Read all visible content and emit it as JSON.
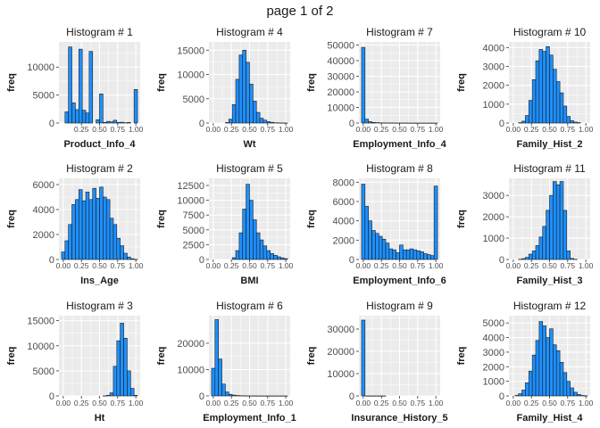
{
  "page_title": "page 1 of 2",
  "colors": {
    "bar_fill": "#1E90FF",
    "bar_stroke": "#1a1a1a",
    "panel_bg": "#EBEBEB",
    "grid": "#FFFFFF"
  },
  "chart_data": [
    {
      "type": "bar",
      "title": "Histogram # 1",
      "xlabel": "Product_Info_4",
      "ylabel": "freq",
      "xlim": [
        -0.06,
        1.06
      ],
      "ylim": [
        0,
        14500
      ],
      "xticks": [
        "0.25",
        "0.50",
        "0.75",
        "1.00"
      ],
      "xtick_values": [
        0.25,
        0.5,
        0.75,
        1.0
      ],
      "yticks": [
        0,
        5000,
        10000
      ],
      "ytick_labels": [
        "0",
        "5000",
        "10000"
      ],
      "bin_width": 0.0476,
      "bin_centers_start": 0.0,
      "values": [
        0,
        2000,
        13600,
        3600,
        2400,
        13200,
        2300,
        1800,
        12800,
        0,
        600,
        5200,
        100,
        300,
        200,
        500,
        100,
        150,
        50,
        100,
        0,
        6000
      ]
    },
    {
      "type": "bar",
      "title": "Histogram # 4",
      "xlabel": "Wt",
      "ylabel": "freq",
      "xlim": [
        -0.06,
        1.06
      ],
      "ylim": [
        0,
        16700
      ],
      "xticks": [
        "0.00",
        "0.25",
        "0.50",
        "0.75",
        "1.00"
      ],
      "xtick_values": [
        0,
        0.25,
        0.5,
        0.75,
        1.0
      ],
      "yticks": [
        0,
        5000,
        10000,
        15000
      ],
      "ytick_labels": [
        "0",
        "5000",
        "10000",
        "15000"
      ],
      "bin_width": 0.0476,
      "bin_centers_start": 0.0,
      "values": [
        0,
        0,
        0,
        0,
        100,
        800,
        3800,
        9000,
        14000,
        15000,
        12500,
        8000,
        4500,
        2200,
        1000,
        600,
        300,
        150,
        60,
        40,
        20,
        10
      ]
    },
    {
      "type": "bar",
      "title": "Histogram # 7",
      "xlabel": "Employment_Info_4",
      "ylabel": "freq",
      "xlim": [
        -0.06,
        1.06
      ],
      "ylim": [
        0,
        52000
      ],
      "xticks": [
        "0.00",
        "0.25",
        "0.50",
        "0.75",
        "1.00"
      ],
      "xtick_values": [
        0,
        0.25,
        0.5,
        0.75,
        1.0
      ],
      "yticks": [
        0,
        10000,
        20000,
        30000,
        40000,
        50000
      ],
      "ytick_labels": [
        "0",
        "10000",
        "20000",
        "30000",
        "40000",
        "50000"
      ],
      "bin_width": 0.0476,
      "bin_centers_start": 0.0,
      "values": [
        48500,
        2500,
        900,
        400,
        250,
        150,
        100,
        80,
        60,
        50,
        40,
        30,
        25,
        20,
        15,
        12,
        10,
        8,
        6,
        5,
        4,
        3
      ]
    },
    {
      "type": "bar",
      "title": "Histogram # 10",
      "xlabel": "Family_Hist_2",
      "ylabel": "freq",
      "xlim": [
        -0.06,
        1.06
      ],
      "ylim": [
        0,
        4300
      ],
      "xticks": [
        "0.00",
        "0.25",
        "0.50",
        "0.75",
        "1.00"
      ],
      "xtick_values": [
        0,
        0.25,
        0.5,
        0.75,
        1.0
      ],
      "yticks": [
        0,
        1000,
        2000,
        3000,
        4000
      ],
      "ytick_labels": [
        "0",
        "1000",
        "2000",
        "3000",
        "4000"
      ],
      "bin_width": 0.0476,
      "bin_centers_start": 0.0,
      "values": [
        0,
        0,
        20,
        100,
        400,
        1200,
        2300,
        3300,
        3900,
        3800,
        4050,
        3600,
        2850,
        2200,
        1600,
        900,
        350,
        130,
        50,
        20,
        0,
        0
      ]
    },
    {
      "type": "bar",
      "title": "Histogram # 2",
      "xlabel": "Ins_Age",
      "ylabel": "freq",
      "xlim": [
        -0.06,
        1.06
      ],
      "ylim": [
        0,
        6500
      ],
      "xticks": [
        "0.00",
        "0.25",
        "0.50",
        "0.75",
        "1.00"
      ],
      "xtick_values": [
        0,
        0.25,
        0.5,
        0.75,
        1.0
      ],
      "yticks": [
        0,
        2000,
        4000,
        6000
      ],
      "ytick_labels": [
        "0",
        "2000",
        "4000",
        "6000"
      ],
      "bin_width": 0.0476,
      "bin_centers_start": 0.0,
      "values": [
        600,
        1500,
        2800,
        4400,
        4800,
        5600,
        4700,
        5400,
        4800,
        5700,
        4900,
        5800,
        5000,
        4800,
        3300,
        2800,
        1700,
        1100,
        500,
        200,
        60,
        10
      ]
    },
    {
      "type": "bar",
      "title": "Histogram # 5",
      "xlabel": "BMI",
      "ylabel": "freq",
      "xlim": [
        -0.06,
        1.06
      ],
      "ylim": [
        0,
        13700
      ],
      "xticks": [
        "0.00",
        "0.25",
        "0.50",
        "0.75",
        "1.00"
      ],
      "xtick_values": [
        0,
        0.25,
        0.5,
        0.75,
        1.0
      ],
      "yticks": [
        0,
        2500,
        5000,
        7500,
        10000,
        12500
      ],
      "ytick_labels": [
        "0",
        "2500",
        "5000",
        "7500",
        "10000",
        "12500"
      ],
      "bin_width": 0.0476,
      "bin_centers_start": 0.0,
      "values": [
        0,
        0,
        0,
        0,
        0,
        0,
        300,
        1500,
        4500,
        8500,
        12700,
        10000,
        6700,
        4500,
        3300,
        2300,
        1500,
        1000,
        700,
        450,
        280,
        150
      ]
    },
    {
      "type": "bar",
      "title": "Histogram # 8",
      "xlabel": "Employment_Info_6",
      "ylabel": "freq",
      "xlim": [
        -0.06,
        1.06
      ],
      "ylim": [
        0,
        8400
      ],
      "xticks": [
        "0.00",
        "0.25",
        "0.50",
        "0.75",
        "1.00"
      ],
      "xtick_values": [
        0,
        0.25,
        0.5,
        0.75,
        1.0
      ],
      "yticks": [
        0,
        2000,
        4000,
        6000,
        8000
      ],
      "ytick_labels": [
        "0",
        "2000",
        "4000",
        "6000",
        "8000"
      ],
      "bin_width": 0.0476,
      "bin_centers_start": 0.0,
      "values": [
        7800,
        5500,
        4000,
        3000,
        2700,
        2400,
        2100,
        1700,
        1100,
        1000,
        700,
        1500,
        1000,
        1000,
        1100,
        1000,
        900,
        800,
        600,
        500,
        400,
        7600
      ]
    },
    {
      "type": "bar",
      "title": "Histogram # 11",
      "xlabel": "Family_Hist_3",
      "ylabel": "freq",
      "xlim": [
        -0.06,
        1.06
      ],
      "ylim": [
        0,
        3800
      ],
      "xticks": [
        "0.00",
        "0.25",
        "0.50",
        "0.75",
        "1.00"
      ],
      "xtick_values": [
        0,
        0.25,
        0.5,
        0.75,
        1.0
      ],
      "yticks": [
        0,
        1000,
        2000,
        3000
      ],
      "ytick_labels": [
        "0",
        "1000",
        "2000",
        "3000"
      ],
      "bin_width": 0.0476,
      "bin_centers_start": 0.0,
      "values": [
        0,
        0,
        10,
        40,
        100,
        250,
        400,
        650,
        1050,
        1550,
        2300,
        3000,
        3650,
        3500,
        3650,
        2300,
        400,
        50,
        10,
        0,
        0,
        0
      ]
    },
    {
      "type": "bar",
      "title": "Histogram # 3",
      "xlabel": "Ht",
      "ylabel": "freq",
      "xlim": [
        -0.06,
        1.06
      ],
      "ylim": [
        0,
        16000
      ],
      "xticks": [
        "0.00",
        "0.25",
        "0.50",
        "0.75",
        "1.00"
      ],
      "xtick_values": [
        0,
        0.25,
        0.5,
        0.75,
        1.0
      ],
      "yticks": [
        0,
        5000,
        10000,
        15000
      ],
      "ytick_labels": [
        "0",
        "5000",
        "10000",
        "15000"
      ],
      "bin_width": 0.0476,
      "bin_centers_start": 0.0,
      "values": [
        0,
        0,
        0,
        0,
        0,
        0,
        0,
        0,
        0,
        0,
        0,
        0,
        10,
        100,
        600,
        5900,
        11000,
        14500,
        11500,
        5000,
        1500,
        100
      ]
    },
    {
      "type": "bar",
      "title": "Histogram # 6",
      "xlabel": "Employment_Info_1",
      "ylabel": "freq",
      "xlim": [
        -0.06,
        1.06
      ],
      "ylim": [
        0,
        30500
      ],
      "xticks": [
        "0.00",
        "0.25",
        "0.50",
        "0.75",
        "1.00"
      ],
      "xtick_values": [
        0,
        0.25,
        0.5,
        0.75,
        1.0
      ],
      "yticks": [
        0,
        10000,
        20000
      ],
      "ytick_labels": [
        "0",
        "10000",
        "20000"
      ],
      "bin_width": 0.0476,
      "bin_centers_start": 0.0,
      "values": [
        10500,
        29000,
        14000,
        4500,
        1500,
        600,
        300,
        150,
        80,
        50,
        30,
        20,
        15,
        10,
        8,
        6,
        5,
        4,
        3,
        2,
        1,
        1
      ]
    },
    {
      "type": "bar",
      "title": "Histogram # 9",
      "xlabel": "Insurance_History_5",
      "ylabel": "freq",
      "xlim": [
        -0.06,
        1.06
      ],
      "ylim": [
        0,
        36000
      ],
      "xticks": [
        "0.00",
        "0.25",
        "0.50",
        "0.75",
        "1.00"
      ],
      "xtick_values": [
        0,
        0.25,
        0.5,
        0.75,
        1.0
      ],
      "yticks": [
        0,
        10000,
        20000,
        30000
      ],
      "ytick_labels": [
        "0",
        "10000",
        "20000",
        "30000"
      ],
      "bin_width": 0.0476,
      "bin_centers_start": 0.0,
      "values": [
        34000,
        10,
        5,
        3,
        2,
        1,
        1,
        0,
        0,
        0,
        0,
        0,
        0,
        0,
        0,
        0,
        0,
        0,
        0,
        0,
        0,
        0
      ]
    },
    {
      "type": "bar",
      "title": "Histogram # 12",
      "xlabel": "Family_Hist_4",
      "ylabel": "freq",
      "xlim": [
        -0.06,
        1.06
      ],
      "ylim": [
        0,
        5500
      ],
      "xticks": [
        "0.00",
        "0.25",
        "0.50",
        "0.75",
        "1.00"
      ],
      "xtick_values": [
        0,
        0.25,
        0.5,
        0.75,
        1.0
      ],
      "yticks": [
        0,
        1000,
        2000,
        3000,
        4000,
        5000
      ],
      "ytick_labels": [
        "0",
        "1000",
        "2000",
        "3000",
        "4000",
        "5000"
      ],
      "bin_width": 0.0476,
      "bin_centers_start": 0.0,
      "values": [
        0,
        30,
        150,
        400,
        900,
        1700,
        2800,
        3800,
        5100,
        4800,
        4000,
        4600,
        3500,
        3100,
        2300,
        1600,
        1000,
        550,
        250,
        100,
        30,
        10
      ]
    }
  ]
}
